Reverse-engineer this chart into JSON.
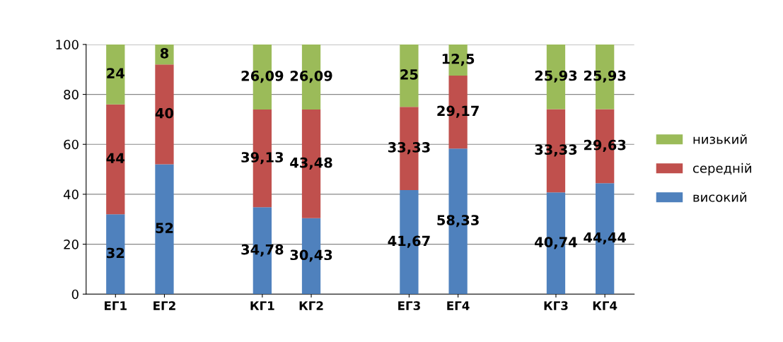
{
  "chart_data": {
    "type": "bar",
    "stacked": true,
    "categories": [
      "ЕГ1",
      "ЕГ2",
      "КГ1",
      "КГ2",
      "ЕГ3",
      "ЕГ4",
      "КГ3",
      "КГ4"
    ],
    "series": [
      {
        "name": "високий",
        "color": "#4f81bd",
        "values": [
          32,
          52,
          34.78,
          30.43,
          41.67,
          58.33,
          40.74,
          44.44
        ],
        "value_labels": [
          "32",
          "52",
          "34,78",
          "30,43",
          "41,67",
          "58,33",
          "40,74",
          "44,44"
        ]
      },
      {
        "name": "середній",
        "color": "#c0504d",
        "values": [
          44,
          40,
          39.13,
          43.48,
          33.33,
          29.17,
          33.33,
          29.63
        ],
        "value_labels": [
          "44",
          "40",
          "39,13",
          "43,48",
          "33,33",
          "29,17",
          "33,33",
          "29,63"
        ]
      },
      {
        "name": "низький",
        "color": "#9bbb59",
        "values": [
          24,
          8,
          26.09,
          26.09,
          25,
          12.5,
          25.93,
          25.93
        ],
        "value_labels": [
          "24",
          "8",
          "26,09",
          "26,09",
          "25",
          "12,5",
          "25,93",
          "25,93"
        ]
      }
    ],
    "ylim": [
      0,
      100
    ],
    "yticks": [
      0,
      20,
      40,
      60,
      80,
      100
    ],
    "grid": "y",
    "legend": "right"
  }
}
